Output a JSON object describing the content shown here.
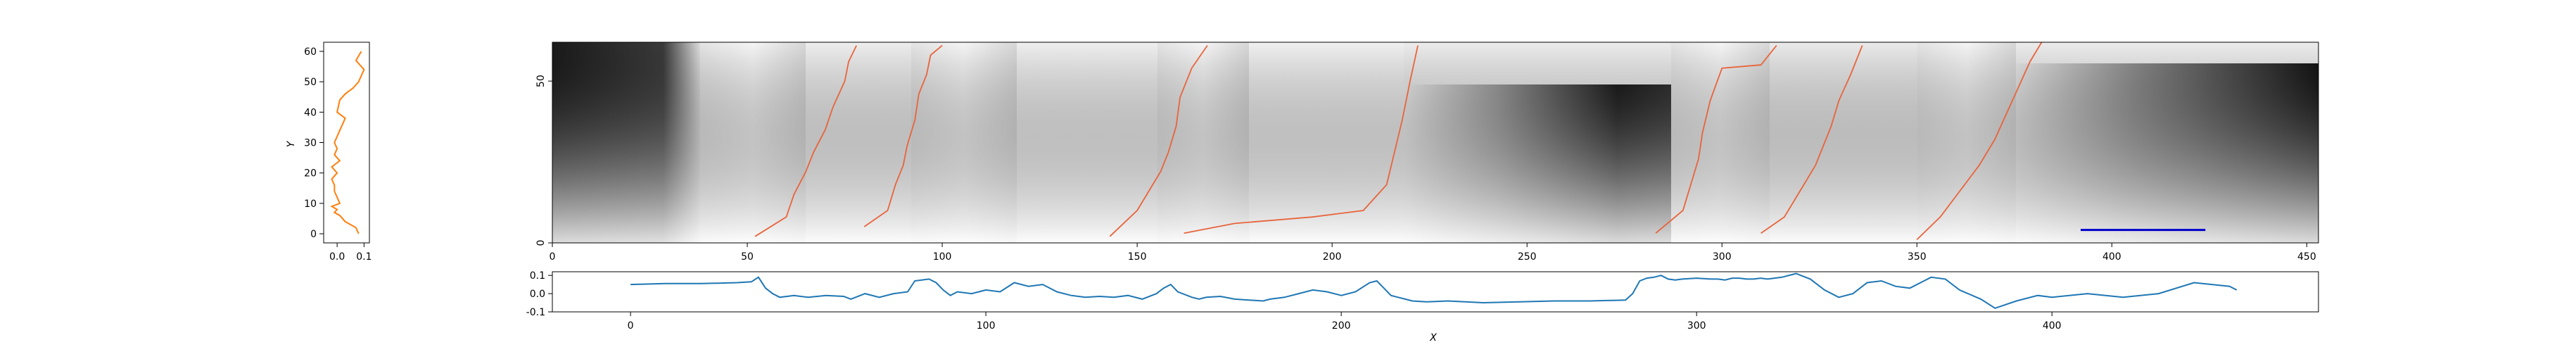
{
  "figure": {
    "colors": {
      "profile_line": "#ff7f0e",
      "signal_line": "#1f77b4",
      "path_line": "#e8643c",
      "scale_bar": "#0000cc",
      "heatmap_low": "#f2f2f2",
      "heatmap_high": "#111111"
    }
  },
  "chart_data": [
    {
      "type": "line",
      "name_hint": "left-profile",
      "ylabel": "Y",
      "xlabel": "",
      "xlim": [
        -0.05,
        0.12
      ],
      "ylim": [
        -3,
        63
      ],
      "xticks": [
        "0.0",
        "0.1"
      ],
      "xtick_values": [
        0.0,
        0.1
      ],
      "yticks": [
        "0",
        "10",
        "20",
        "30",
        "40",
        "50",
        "60"
      ],
      "ytick_values": [
        0,
        10,
        20,
        30,
        40,
        50,
        60
      ],
      "series": [
        {
          "x": [
            0.08,
            0.07,
            0.03,
            0.01,
            -0.01,
            0.0,
            -0.02,
            0.01,
            0.0,
            -0.01,
            -0.01,
            -0.02,
            0.0,
            -0.01,
            -0.02,
            0.01,
            -0.01,
            0.0,
            -0.01,
            0.0,
            0.01,
            0.02,
            0.03,
            0.0,
            0.01,
            0.03,
            0.06,
            0.08,
            0.09,
            0.1,
            0.07,
            0.09
          ],
          "y": [
            0,
            2,
            4,
            6,
            7,
            8,
            9,
            10,
            12,
            14,
            16,
            18,
            20,
            21,
            22,
            24,
            26,
            28,
            30,
            32,
            34,
            36,
            38,
            40,
            44,
            46,
            48,
            50,
            52,
            54,
            57,
            60
          ]
        }
      ]
    },
    {
      "type": "heatmap",
      "name_hint": "main-heatmap",
      "xlabel": "",
      "ylabel": "",
      "xlim": [
        0,
        453
      ],
      "ylim": [
        0,
        62
      ],
      "xticks": [
        "0",
        "50",
        "100",
        "150",
        "200",
        "250",
        "300",
        "350",
        "400",
        "450"
      ],
      "xtick_values": [
        0,
        50,
        100,
        150,
        200,
        250,
        300,
        350,
        400,
        450
      ],
      "yticks": [
        "0",
        "50"
      ],
      "ytick_values": [
        0,
        50
      ],
      "paths": [
        {
          "x": [
            52,
            60,
            62,
            65,
            67,
            70,
            72,
            75,
            76,
            78
          ],
          "y": [
            2,
            8,
            15,
            22,
            28,
            35,
            42,
            50,
            56,
            61
          ]
        },
        {
          "x": [
            80,
            86,
            88,
            90,
            91,
            93,
            94,
            96,
            97,
            100
          ],
          "y": [
            5,
            10,
            18,
            24,
            30,
            38,
            46,
            52,
            58,
            61
          ]
        },
        {
          "x": [
            143,
            150,
            153,
            156,
            158,
            160,
            161,
            164,
            168
          ],
          "y": [
            2,
            10,
            16,
            22,
            28,
            36,
            45,
            54,
            61
          ]
        },
        {
          "x": [
            162,
            175,
            195,
            208,
            214,
            216,
            218,
            220,
            222
          ],
          "y": [
            3,
            6,
            8,
            10,
            18,
            28,
            38,
            50,
            61
          ]
        },
        {
          "x": [
            283,
            290,
            292,
            294,
            295,
            297,
            300,
            310,
            312,
            314
          ],
          "y": [
            3,
            10,
            18,
            26,
            34,
            44,
            54,
            55,
            58,
            61
          ]
        },
        {
          "x": [
            310,
            316,
            320,
            324,
            326,
            328,
            330,
            333,
            336
          ],
          "y": [
            3,
            8,
            16,
            24,
            30,
            36,
            44,
            52,
            61
          ]
        },
        {
          "x": [
            350,
            356,
            361,
            366,
            370,
            373,
            376,
            379,
            382
          ],
          "y": [
            1,
            8,
            16,
            24,
            32,
            40,
            48,
            56,
            62
          ]
        }
      ],
      "scale_bar": {
        "x": [
          392,
          424
        ],
        "y": 4
      }
    },
    {
      "type": "line",
      "name_hint": "bottom-signal",
      "xlabel": "X",
      "ylabel": "",
      "xlim": [
        -22,
        475
      ],
      "ylim": [
        -0.1,
        0.12
      ],
      "xticks": [
        "0",
        "100",
        "200",
        "300",
        "400"
      ],
      "xtick_values": [
        0,
        100,
        200,
        300,
        400
      ],
      "yticks": [
        "-0.1",
        "0.0",
        "0.1"
      ],
      "ytick_values": [
        -0.1,
        0.0,
        0.1
      ],
      "series": [
        {
          "x": [
            0,
            10,
            20,
            30,
            34,
            36,
            38,
            40,
            42,
            46,
            50,
            55,
            60,
            62,
            66,
            70,
            74,
            78,
            80,
            84,
            86,
            88,
            90,
            92,
            96,
            100,
            104,
            108,
            112,
            116,
            120,
            124,
            128,
            132,
            136,
            140,
            144,
            148,
            150,
            152,
            154,
            158,
            160,
            162,
            166,
            170,
            174,
            178,
            180,
            184,
            188,
            192,
            196,
            200,
            204,
            208,
            210,
            212,
            214,
            216,
            218,
            220,
            224,
            230,
            240,
            250,
            260,
            270,
            280,
            282,
            284,
            286,
            288,
            290,
            292,
            294,
            296,
            300,
            304,
            306,
            308,
            310,
            312,
            314,
            316,
            318,
            320,
            324,
            328,
            332,
            336,
            340,
            344,
            348,
            352,
            356,
            360,
            364,
            366,
            370,
            374,
            380,
            384,
            390,
            396,
            400,
            410,
            420,
            430,
            440,
            450,
            452
          ],
          "y": [
            0.05,
            0.055,
            0.055,
            0.06,
            0.065,
            0.09,
            0.03,
            0.0,
            -0.02,
            -0.01,
            -0.02,
            -0.01,
            -0.015,
            -0.03,
            0.0,
            -0.02,
            0.0,
            0.01,
            0.07,
            0.08,
            0.06,
            0.02,
            -0.01,
            0.01,
            0.0,
            0.02,
            0.01,
            0.06,
            0.04,
            0.05,
            0.01,
            -0.01,
            -0.02,
            -0.015,
            -0.02,
            -0.01,
            -0.03,
            0.0,
            0.03,
            0.05,
            0.01,
            -0.02,
            -0.03,
            -0.02,
            -0.015,
            -0.03,
            -0.035,
            -0.04,
            -0.03,
            -0.02,
            0.0,
            0.02,
            0.01,
            -0.01,
            0.01,
            0.06,
            0.07,
            0.03,
            -0.01,
            -0.02,
            -0.03,
            -0.04,
            -0.045,
            -0.04,
            -0.05,
            -0.045,
            -0.04,
            -0.04,
            -0.035,
            0.0,
            0.07,
            0.085,
            0.09,
            0.1,
            0.08,
            0.075,
            0.08,
            0.085,
            0.08,
            0.08,
            0.075,
            0.085,
            0.085,
            0.08,
            0.08,
            0.085,
            0.08,
            0.09,
            0.11,
            0.08,
            0.02,
            -0.02,
            0.0,
            0.06,
            0.07,
            0.04,
            0.03,
            0.07,
            0.09,
            0.08,
            0.02,
            -0.03,
            -0.08,
            -0.04,
            -0.01,
            -0.02,
            0.0,
            -0.02,
            0.0,
            0.06,
            0.04,
            0.02
          ]
        }
      ]
    }
  ]
}
